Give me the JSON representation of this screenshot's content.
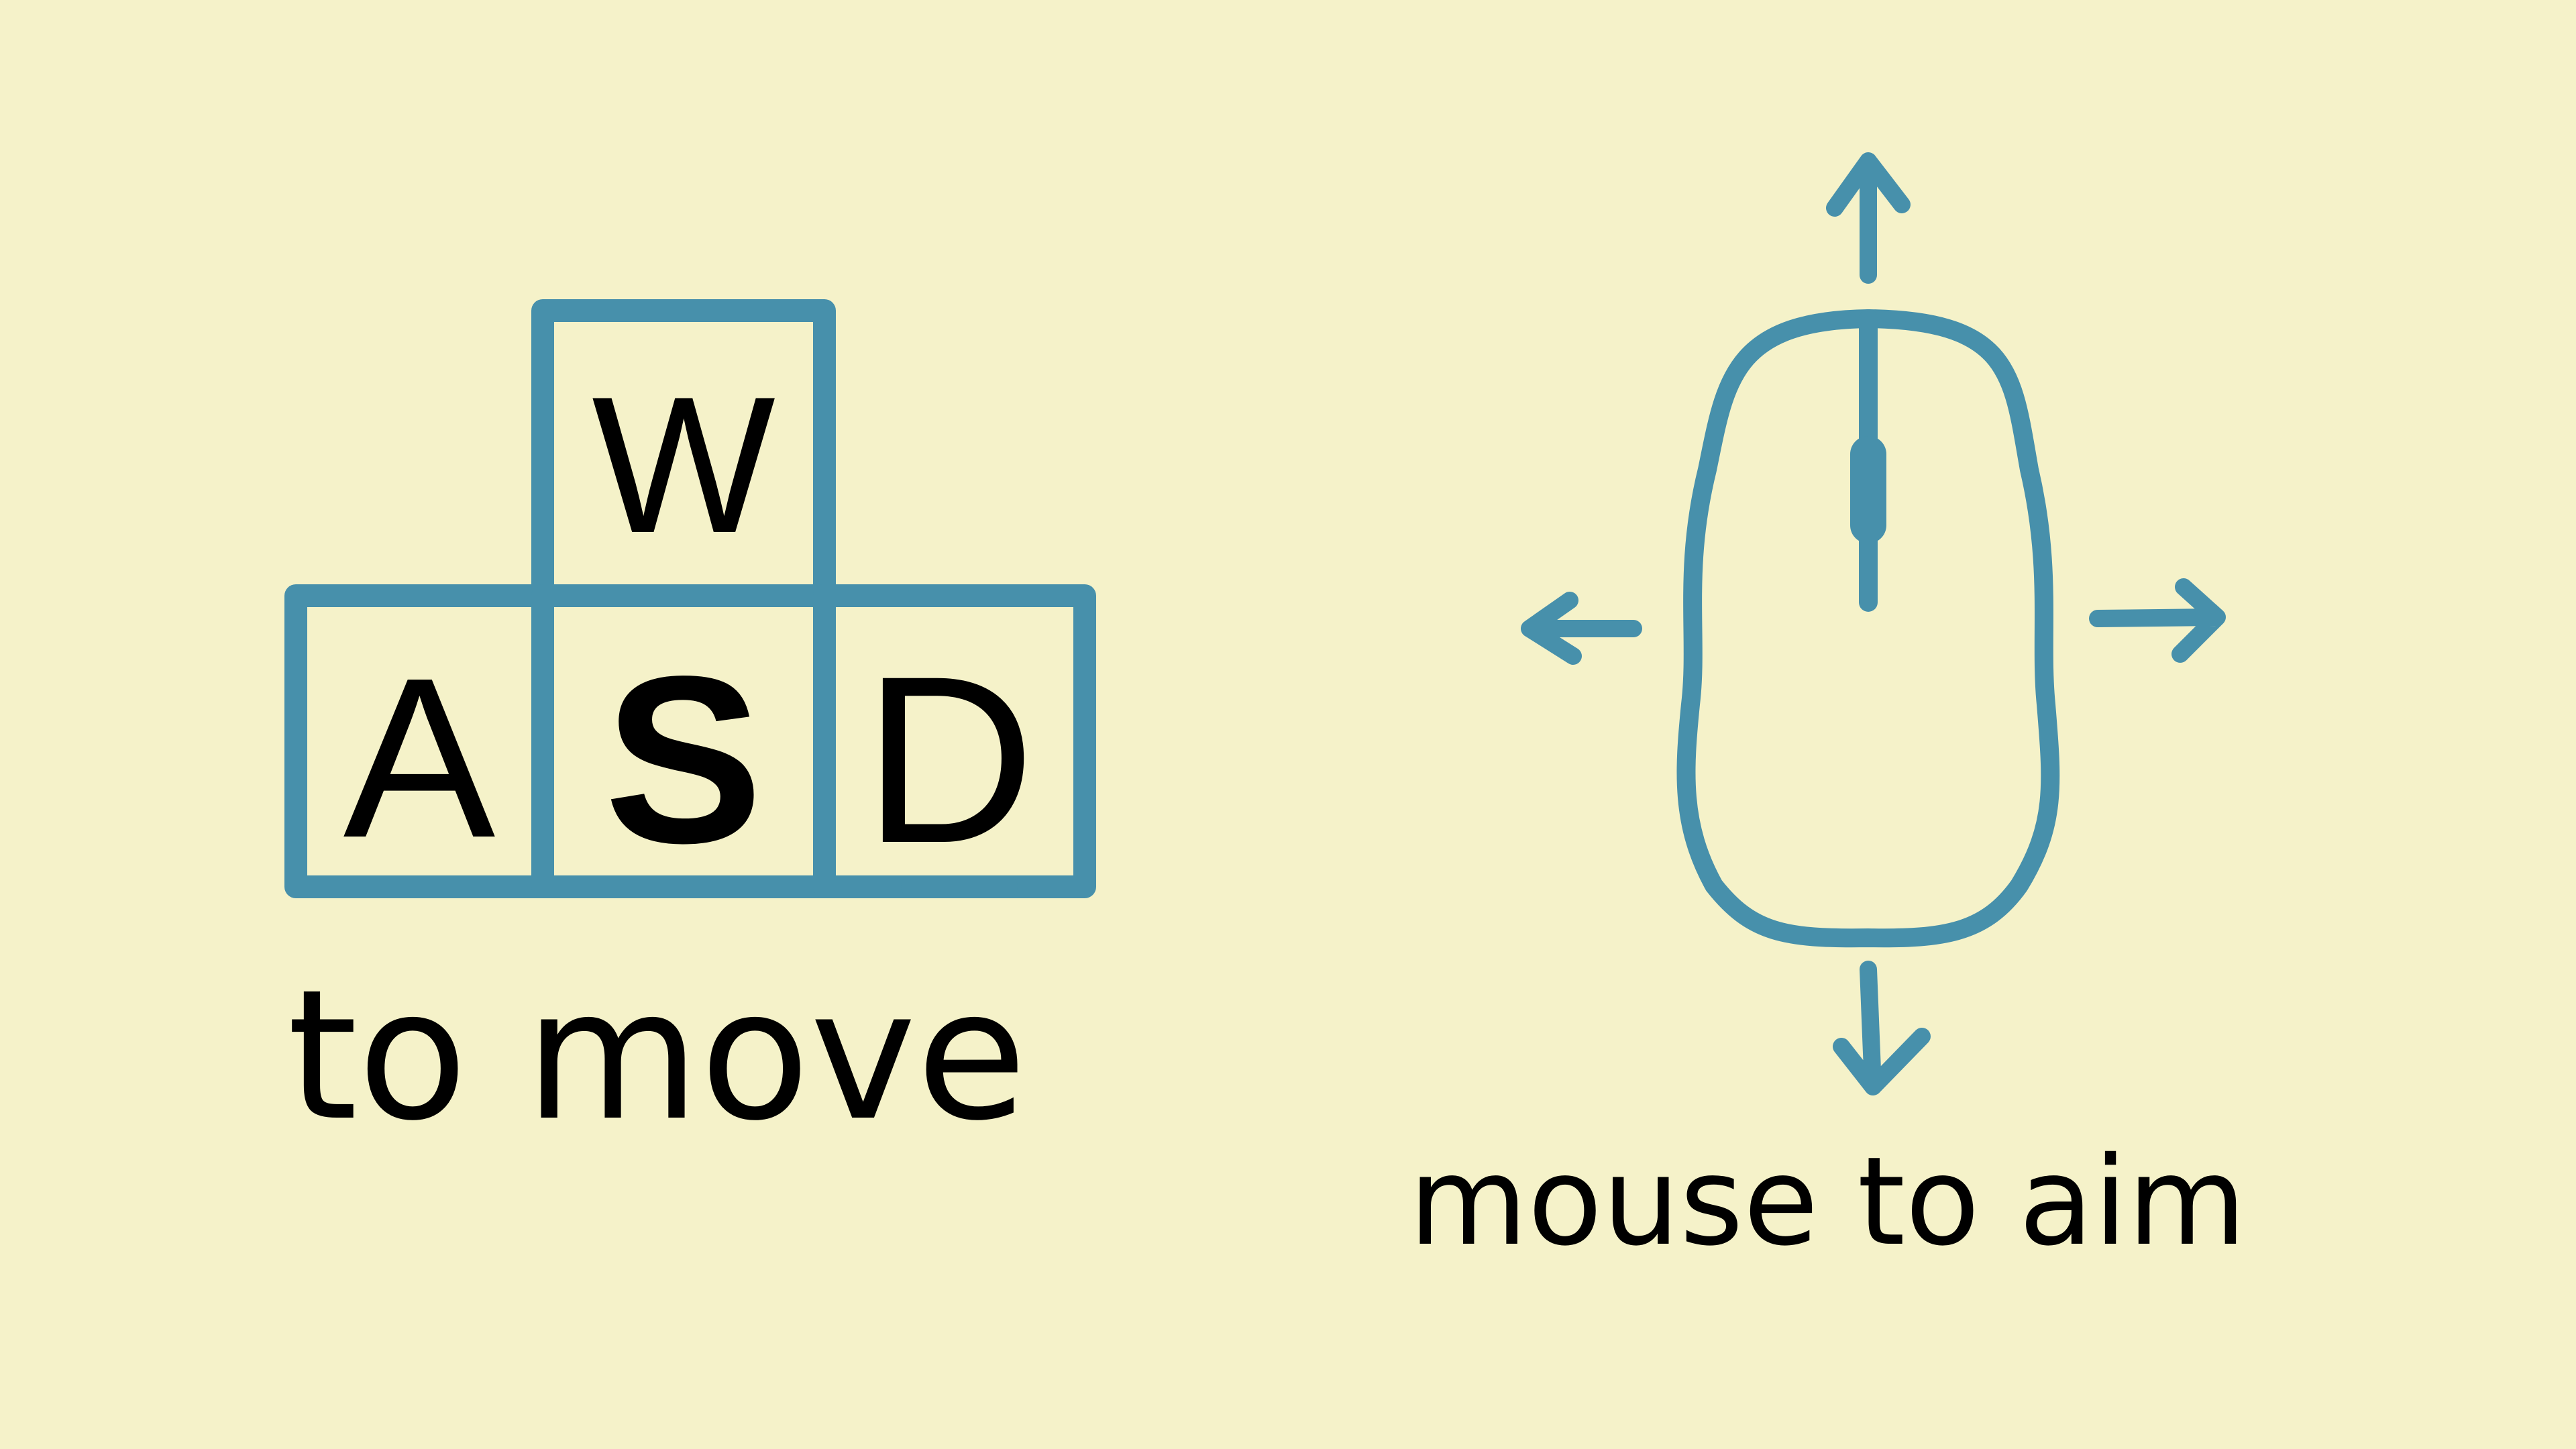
{
  "keys": {
    "w": "W",
    "a": "A",
    "s": "S",
    "d": "D"
  },
  "captions": {
    "move": "to move",
    "aim": "mouse to aim"
  },
  "icons": {
    "keyboard": "wasd-keys-icon",
    "mouse": "mouse-icon",
    "arrows": [
      "arrow-up-icon",
      "arrow-down-icon",
      "arrow-left-icon",
      "arrow-right-icon"
    ]
  },
  "colors": {
    "background": "#f5f2c9",
    "stroke": "#4790ab",
    "text": "#000000"
  }
}
